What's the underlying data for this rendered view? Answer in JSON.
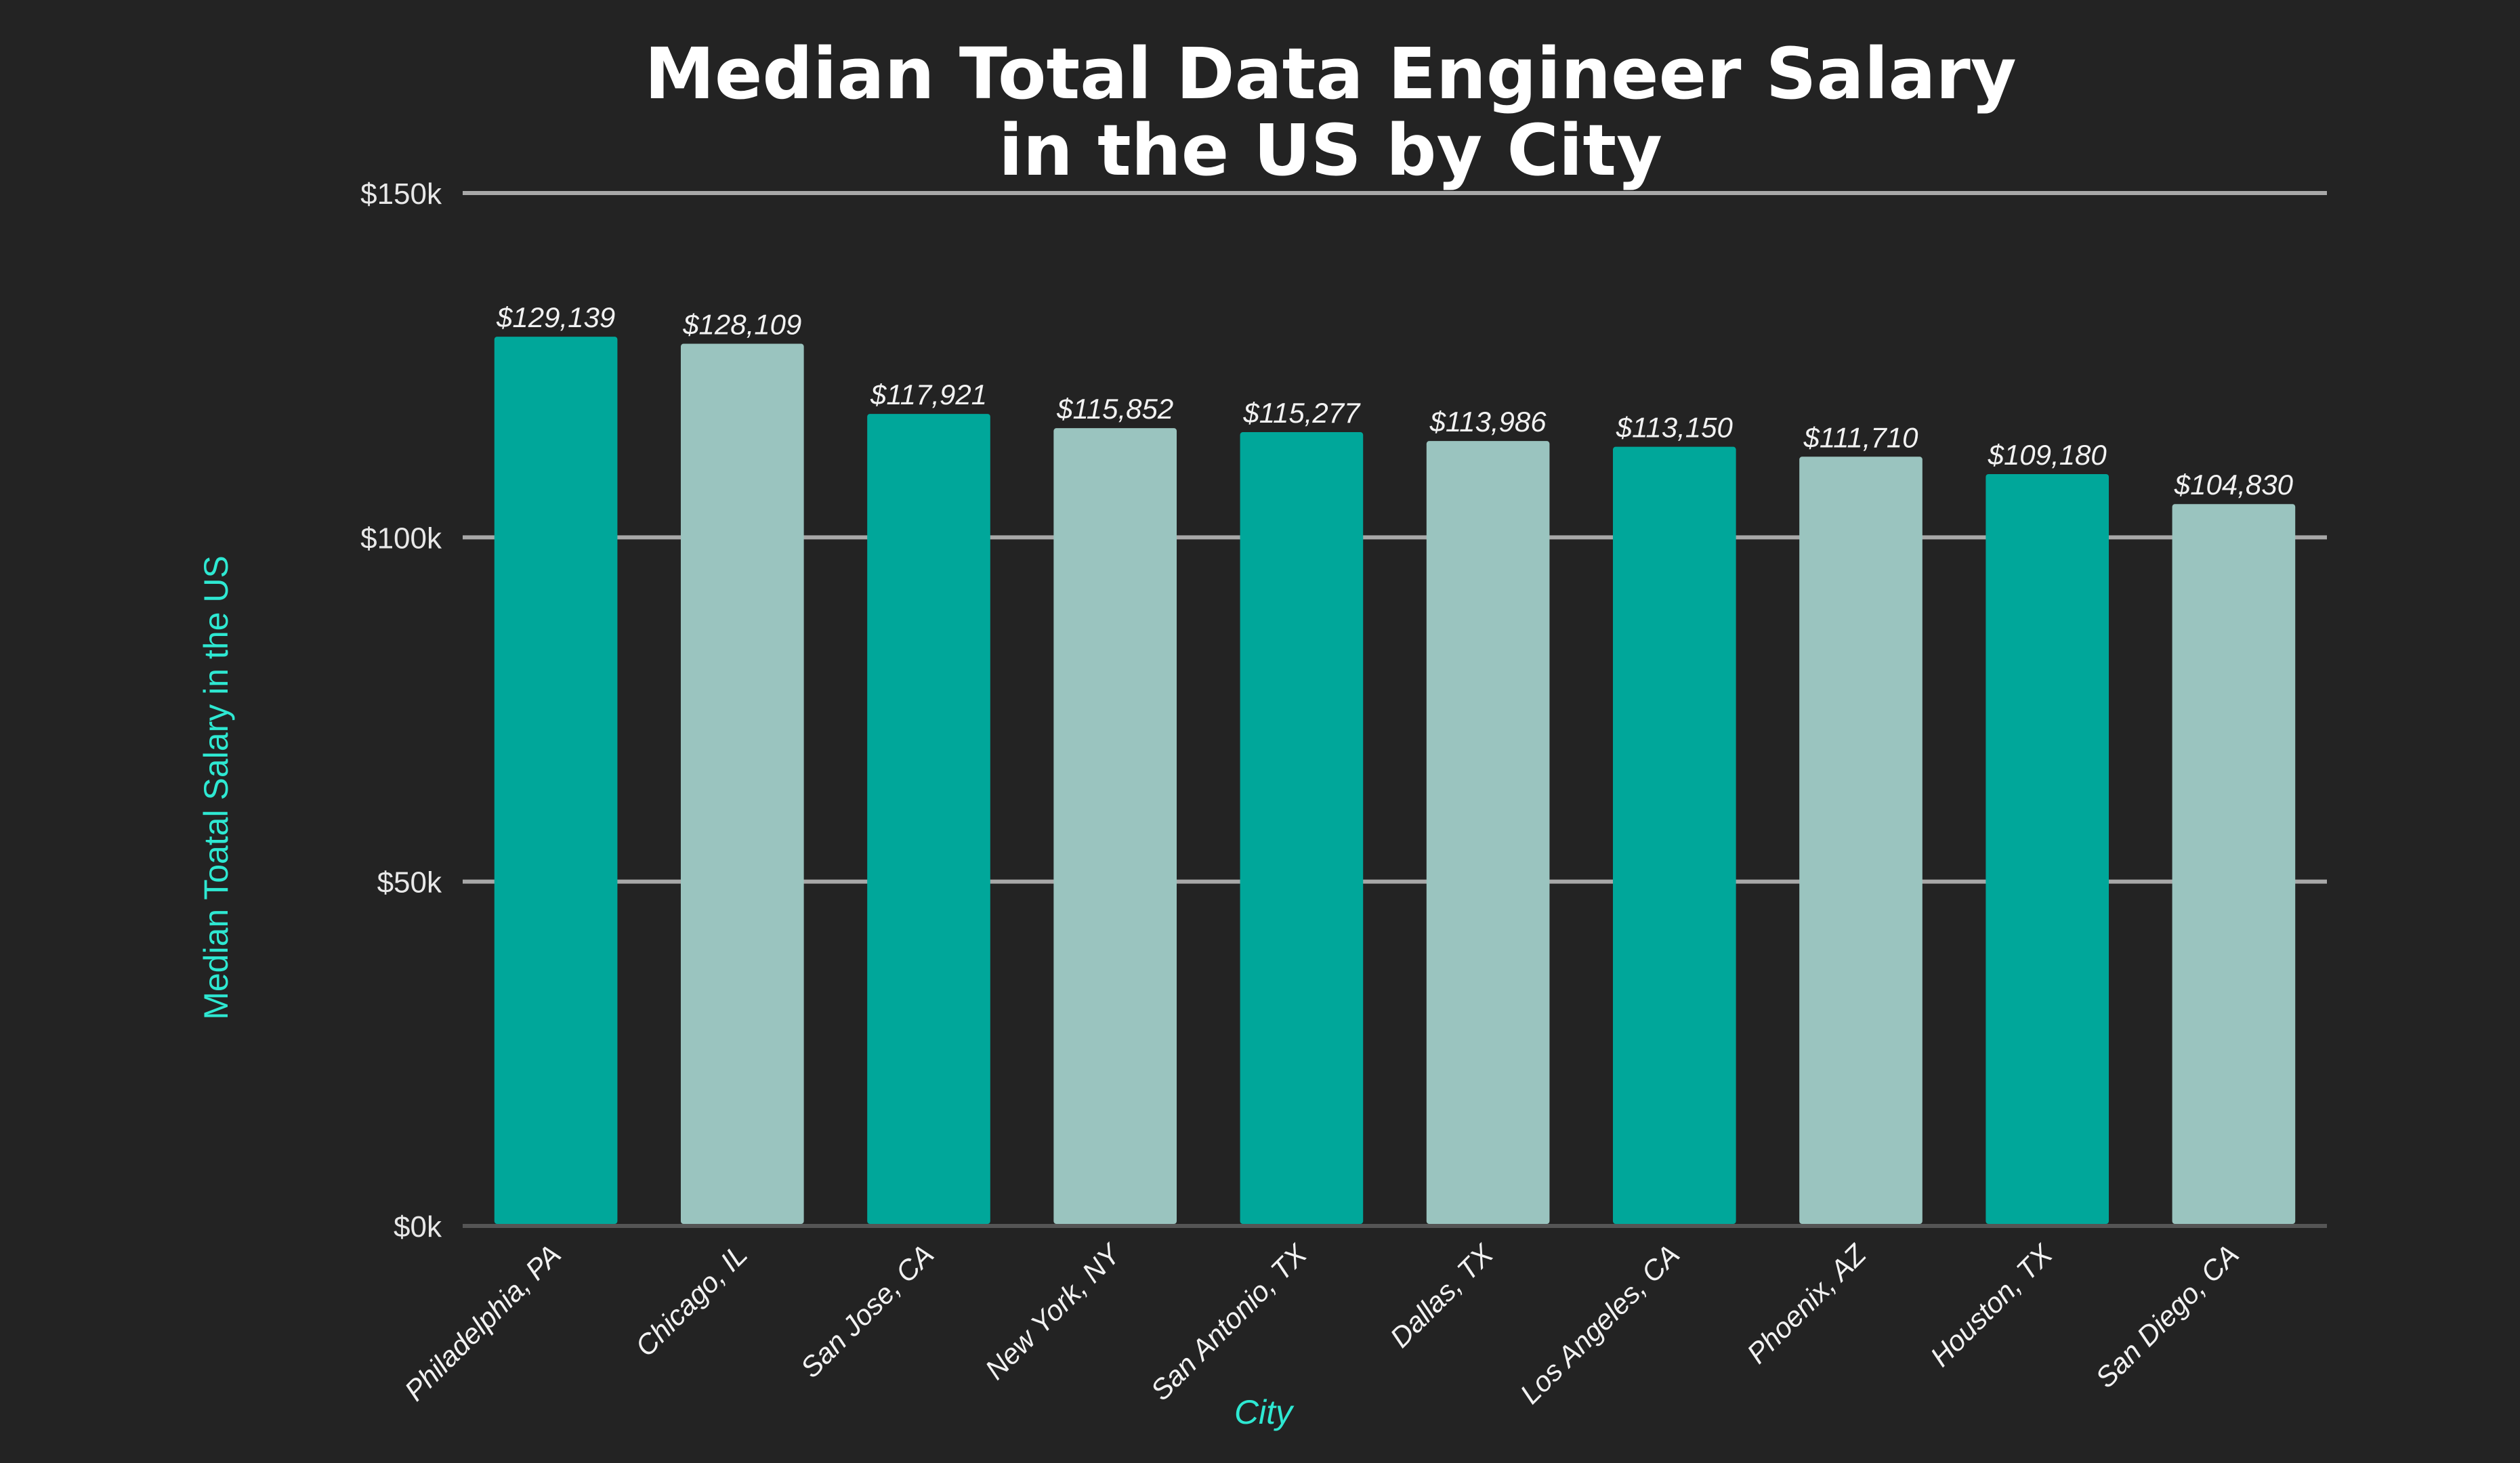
{
  "chart_data": {
    "type": "bar",
    "title_lines": [
      "Median Total Data Engineer Salary",
      "in the US by City"
    ],
    "xlabel": "City",
    "ylabel": "Median Toatal Salary in the US",
    "ylim": [
      0,
      150000
    ],
    "y_ticks": [
      0,
      50000,
      100000,
      150000
    ],
    "y_tick_labels": [
      "$0k",
      "$50k",
      "$100k",
      "$150k"
    ],
    "grid": true,
    "categories": [
      "Philadelphia, PA",
      "Chicago, IL",
      "San Jose, CA",
      "New York, NY",
      "San Antonio, TX",
      "Dallas, TX",
      "Los Angeles, CA",
      "Phoenix, AZ",
      "Houston, TX",
      "San Diego, CA"
    ],
    "values": [
      129139,
      128109,
      117921,
      115852,
      115277,
      113986,
      113150,
      111710,
      109180,
      104830
    ],
    "data_labels": [
      "$129,139",
      "$128,109",
      "$117,921",
      "$115,852",
      "$115,277",
      "$113,986",
      "$113,150",
      "$111,710",
      "$109,180",
      "$104,830"
    ],
    "colors": {
      "background": "#232323",
      "bar_primary": "#00a79a",
      "bar_secondary": "#9ac4bf",
      "axis_label": "#2ee8d2",
      "grid": "#a8a8a8",
      "baseline": "#555555"
    }
  }
}
